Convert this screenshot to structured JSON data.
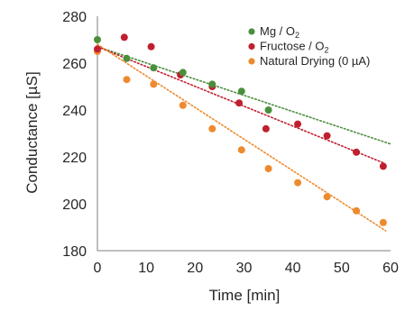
{
  "chart_data": {
    "type": "scatter",
    "title": "",
    "xlabel": "Time [min]",
    "ylabel": "Conductance [µS]",
    "xlim": [
      0,
      60
    ],
    "ylim": [
      180,
      280
    ],
    "xticks": [
      0,
      10,
      20,
      30,
      40,
      50,
      60
    ],
    "yticks": [
      180,
      200,
      220,
      240,
      260,
      280
    ],
    "grid": false,
    "legend_position": "top-right",
    "series": [
      {
        "name": "Mg / O2",
        "legend_main": "Mg / O",
        "legend_sub": "2",
        "color": "#4a8f3c",
        "x": [
          0,
          6,
          11.5,
          17.5,
          23.5,
          29.5,
          35
        ],
        "y": [
          270,
          262,
          258,
          256,
          251,
          248,
          240
        ],
        "trend": {
          "x": [
            0,
            60
          ],
          "y": [
            267,
            225.5
          ]
        }
      },
      {
        "name": "Fructose / O2",
        "legend_main": "Fructose / O",
        "legend_sub": "2",
        "color": "#c0202e",
        "x": [
          0,
          5.5,
          11,
          17,
          23.5,
          29,
          34.5,
          41,
          47,
          53,
          58.5
        ],
        "y": [
          266,
          271,
          267,
          255,
          250,
          243,
          232,
          234,
          229,
          222,
          216
        ],
        "trend": {
          "x": [
            0,
            58.5
          ],
          "y": [
            267,
            217.5
          ]
        }
      },
      {
        "name": "Natural Drying (0 µA)",
        "legend_main": "Natural Drying (0 µA)",
        "legend_sub": "",
        "color": "#ee8a2e",
        "x": [
          0,
          6,
          11.5,
          17.5,
          23.5,
          29.5,
          35,
          41,
          47,
          53,
          58.5
        ],
        "y": [
          265,
          253,
          251,
          242,
          232,
          223,
          215,
          209,
          203,
          197,
          192
        ],
        "trend": {
          "x": [
            0,
            59
          ],
          "y": [
            268,
            188.5
          ]
        }
      }
    ]
  }
}
